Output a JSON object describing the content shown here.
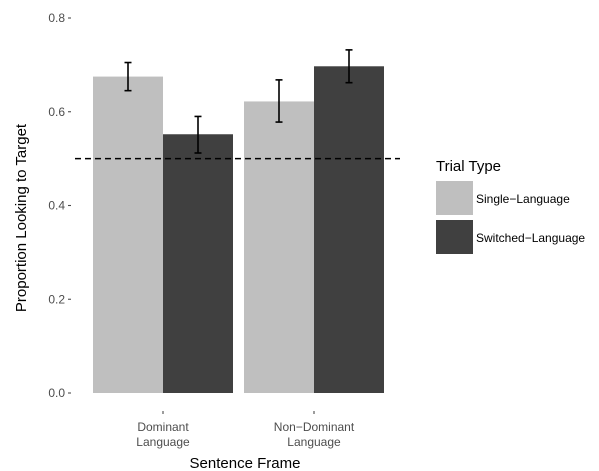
{
  "chart_data": {
    "type": "bar",
    "title": "",
    "xlabel": "Sentence Frame",
    "ylabel": "Proportion Looking to Target",
    "ylim": [
      0.0,
      0.8
    ],
    "y_ticks": [
      "0.0",
      "0.2",
      "0.4",
      "0.6",
      "0.8"
    ],
    "categories": [
      {
        "line1": "Dominant",
        "line2": "Language"
      },
      {
        "line1": "Non−Dominant",
        "line2": "Language"
      }
    ],
    "series": [
      {
        "name": "Single−Language",
        "color": "#bfbfbf",
        "values": [
          0.675,
          0.622
        ],
        "error_low": [
          0.645,
          0.578
        ],
        "error_high": [
          0.705,
          0.668
        ]
      },
      {
        "name": "Switched−Language",
        "color": "#404040",
        "values": [
          0.552,
          0.697
        ],
        "error_low": [
          0.512,
          0.662
        ],
        "error_high": [
          0.59,
          0.732
        ]
      }
    ],
    "reference_line": {
      "y": 0.5,
      "style": "dashed"
    },
    "legend": {
      "title": "Trial Type",
      "position": "right"
    },
    "grid": false
  }
}
